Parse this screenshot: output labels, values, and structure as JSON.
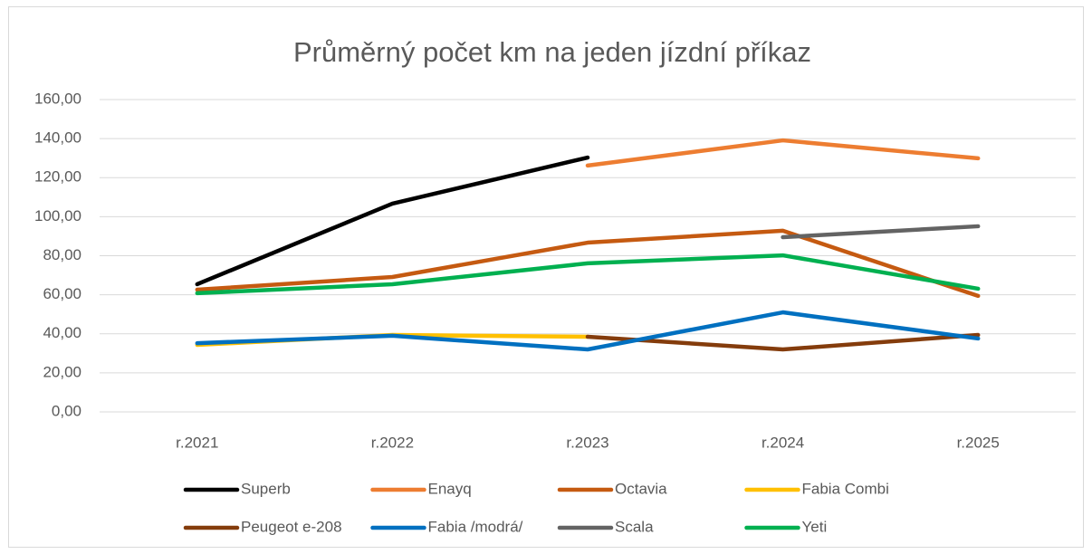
{
  "chart_data": {
    "type": "line",
    "title": "Průměrný počet km na jeden jízdní příkaz",
    "categories": [
      "r.2021",
      "r.2022",
      "r.2023",
      "r.2024",
      "r.2025"
    ],
    "series": [
      {
        "name": "Superb",
        "color": "#000000",
        "values": [
          65.4,
          106.7,
          130.3,
          null,
          null
        ]
      },
      {
        "name": "Enayq",
        "color": "#ed7d31",
        "values": [
          null,
          null,
          126.2,
          139.1,
          129.9
        ]
      },
      {
        "name": "Octavia",
        "color": "#c55a11",
        "values": [
          62.6,
          69.1,
          86.7,
          92.8,
          59.4
        ]
      },
      {
        "name": "Fabia Combi",
        "color": "#ffc000",
        "values": [
          34.3,
          39.4,
          38.5,
          null,
          null
        ]
      },
      {
        "name": "Peugeot e-208",
        "color": "#843c0c",
        "values": [
          null,
          null,
          38.5,
          32.0,
          39.4
        ]
      },
      {
        "name": "Fabia /modrá/",
        "color": "#0070c0",
        "values": [
          35.2,
          39.0,
          32.0,
          51.0,
          37.6
        ]
      },
      {
        "name": "Scala",
        "color": "#636363",
        "values": [
          null,
          null,
          null,
          89.5,
          95.1
        ]
      },
      {
        "name": "Yeti",
        "color": "#00b050",
        "values": [
          60.8,
          65.4,
          76.1,
          80.2,
          63.1
        ]
      }
    ],
    "ylim": [
      0,
      160
    ],
    "yticks": [
      {
        "value": 0,
        "label": "0,00"
      },
      {
        "value": 20,
        "label": "20,00"
      },
      {
        "value": 40,
        "label": "40,00"
      },
      {
        "value": 60,
        "label": "60,00"
      },
      {
        "value": 80,
        "label": "80,00"
      },
      {
        "value": 100,
        "label": "100,00"
      },
      {
        "value": 120,
        "label": "120,00"
      },
      {
        "value": 140,
        "label": "140,00"
      },
      {
        "value": 160,
        "label": "160,00"
      }
    ],
    "grid": true,
    "legend": "bottom"
  }
}
